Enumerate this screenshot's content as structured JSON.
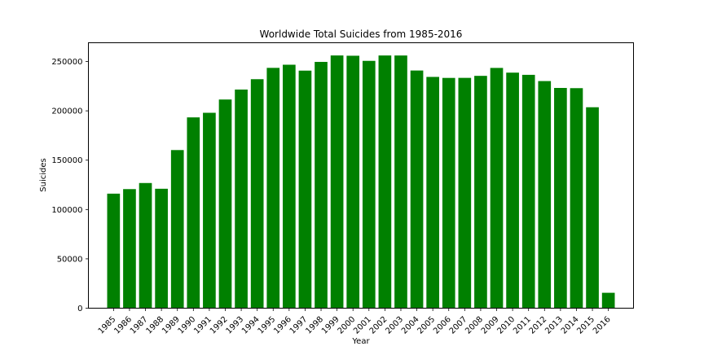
{
  "chart_data": {
    "type": "bar",
    "title": "Worldwide Total Suicides from 1985-2016",
    "xlabel": "Year",
    "ylabel": "Suicides",
    "categories": [
      "1985",
      "1986",
      "1987",
      "1988",
      "1989",
      "1990",
      "1991",
      "1992",
      "1993",
      "1994",
      "1995",
      "1996",
      "1997",
      "1998",
      "1999",
      "2000",
      "2001",
      "2002",
      "2003",
      "2004",
      "2005",
      "2006",
      "2007",
      "2008",
      "2009",
      "2010",
      "2011",
      "2012",
      "2013",
      "2014",
      "2015",
      "2016"
    ],
    "values": [
      116063,
      120670,
      126842,
      121026,
      160244,
      193361,
      198020,
      211473,
      221565,
      232063,
      243544,
      246725,
      240745,
      249591,
      256119,
      255832,
      250652,
      256095,
      256079,
      240861,
      234375,
      233361,
      233408,
      235447,
      243487,
      238702,
      236484,
      230160,
      223199,
      222984,
      203640,
      15603
    ],
    "ylim": [
      0,
      269000
    ],
    "yticks": [
      0,
      50000,
      100000,
      150000,
      200000,
      250000
    ],
    "ytick_labels": [
      "0",
      "50000",
      "100000",
      "150000",
      "200000",
      "250000"
    ],
    "grid": false,
    "bar_color": "#008000"
  }
}
